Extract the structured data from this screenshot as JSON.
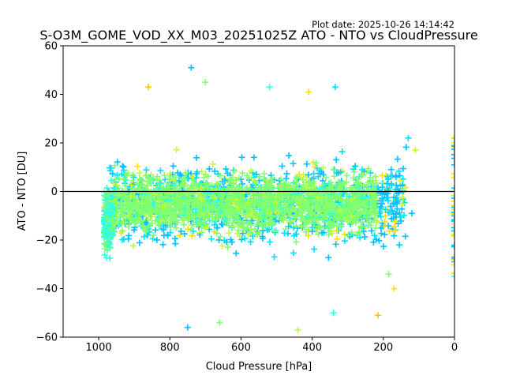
{
  "chart_data": {
    "type": "scatter",
    "plot_date": "Plot date: 2025-10-26 14:14:42",
    "title": "S-O3M_GOME_VOD_XX_M03_20251025Z ATO - NTO vs CloudPressure",
    "xlabel": "Cloud Pressure [hPa]",
    "ylabel": "ATO - NTO [DU]",
    "xlim": [
      1100,
      0
    ],
    "ylim": [
      -60,
      60
    ],
    "x_ticks": [
      1000,
      800,
      600,
      400,
      200,
      0
    ],
    "y_ticks": [
      60,
      40,
      20,
      0,
      -20,
      -40,
      -60
    ],
    "reference_line_y": 0,
    "marker": "+",
    "colors": [
      "#00c0ff",
      "#00e0ff",
      "#30ffe0",
      "#80ff70",
      "#c0ff30",
      "#ffe000",
      "#ffc000"
    ],
    "series_envelope": {
      "x_range": [
        975,
        135
      ],
      "dense_y_range": [
        -30,
        25
      ],
      "outlier_y_range": [
        -57,
        51
      ],
      "edge_column_x": 0,
      "edge_column_y_range": [
        -35,
        22
      ]
    },
    "sample_points": [
      {
        "x": 740,
        "y": 51
      },
      {
        "x": 700,
        "y": 45
      },
      {
        "x": 860,
        "y": 43
      },
      {
        "x": 520,
        "y": 43
      },
      {
        "x": 410,
        "y": 41
      },
      {
        "x": 335,
        "y": 43
      },
      {
        "x": 440,
        "y": -57
      },
      {
        "x": 750,
        "y": -56
      },
      {
        "x": 660,
        "y": -54
      },
      {
        "x": 215,
        "y": -51
      },
      {
        "x": 340,
        "y": -50
      },
      {
        "x": 170,
        "y": -40
      },
      {
        "x": 130,
        "y": 22
      },
      {
        "x": 110,
        "y": 17
      },
      {
        "x": 120,
        "y": -9
      },
      {
        "x": 185,
        "y": -34
      },
      {
        "x": 0,
        "y": 22
      },
      {
        "x": 0,
        "y": -35
      }
    ]
  }
}
